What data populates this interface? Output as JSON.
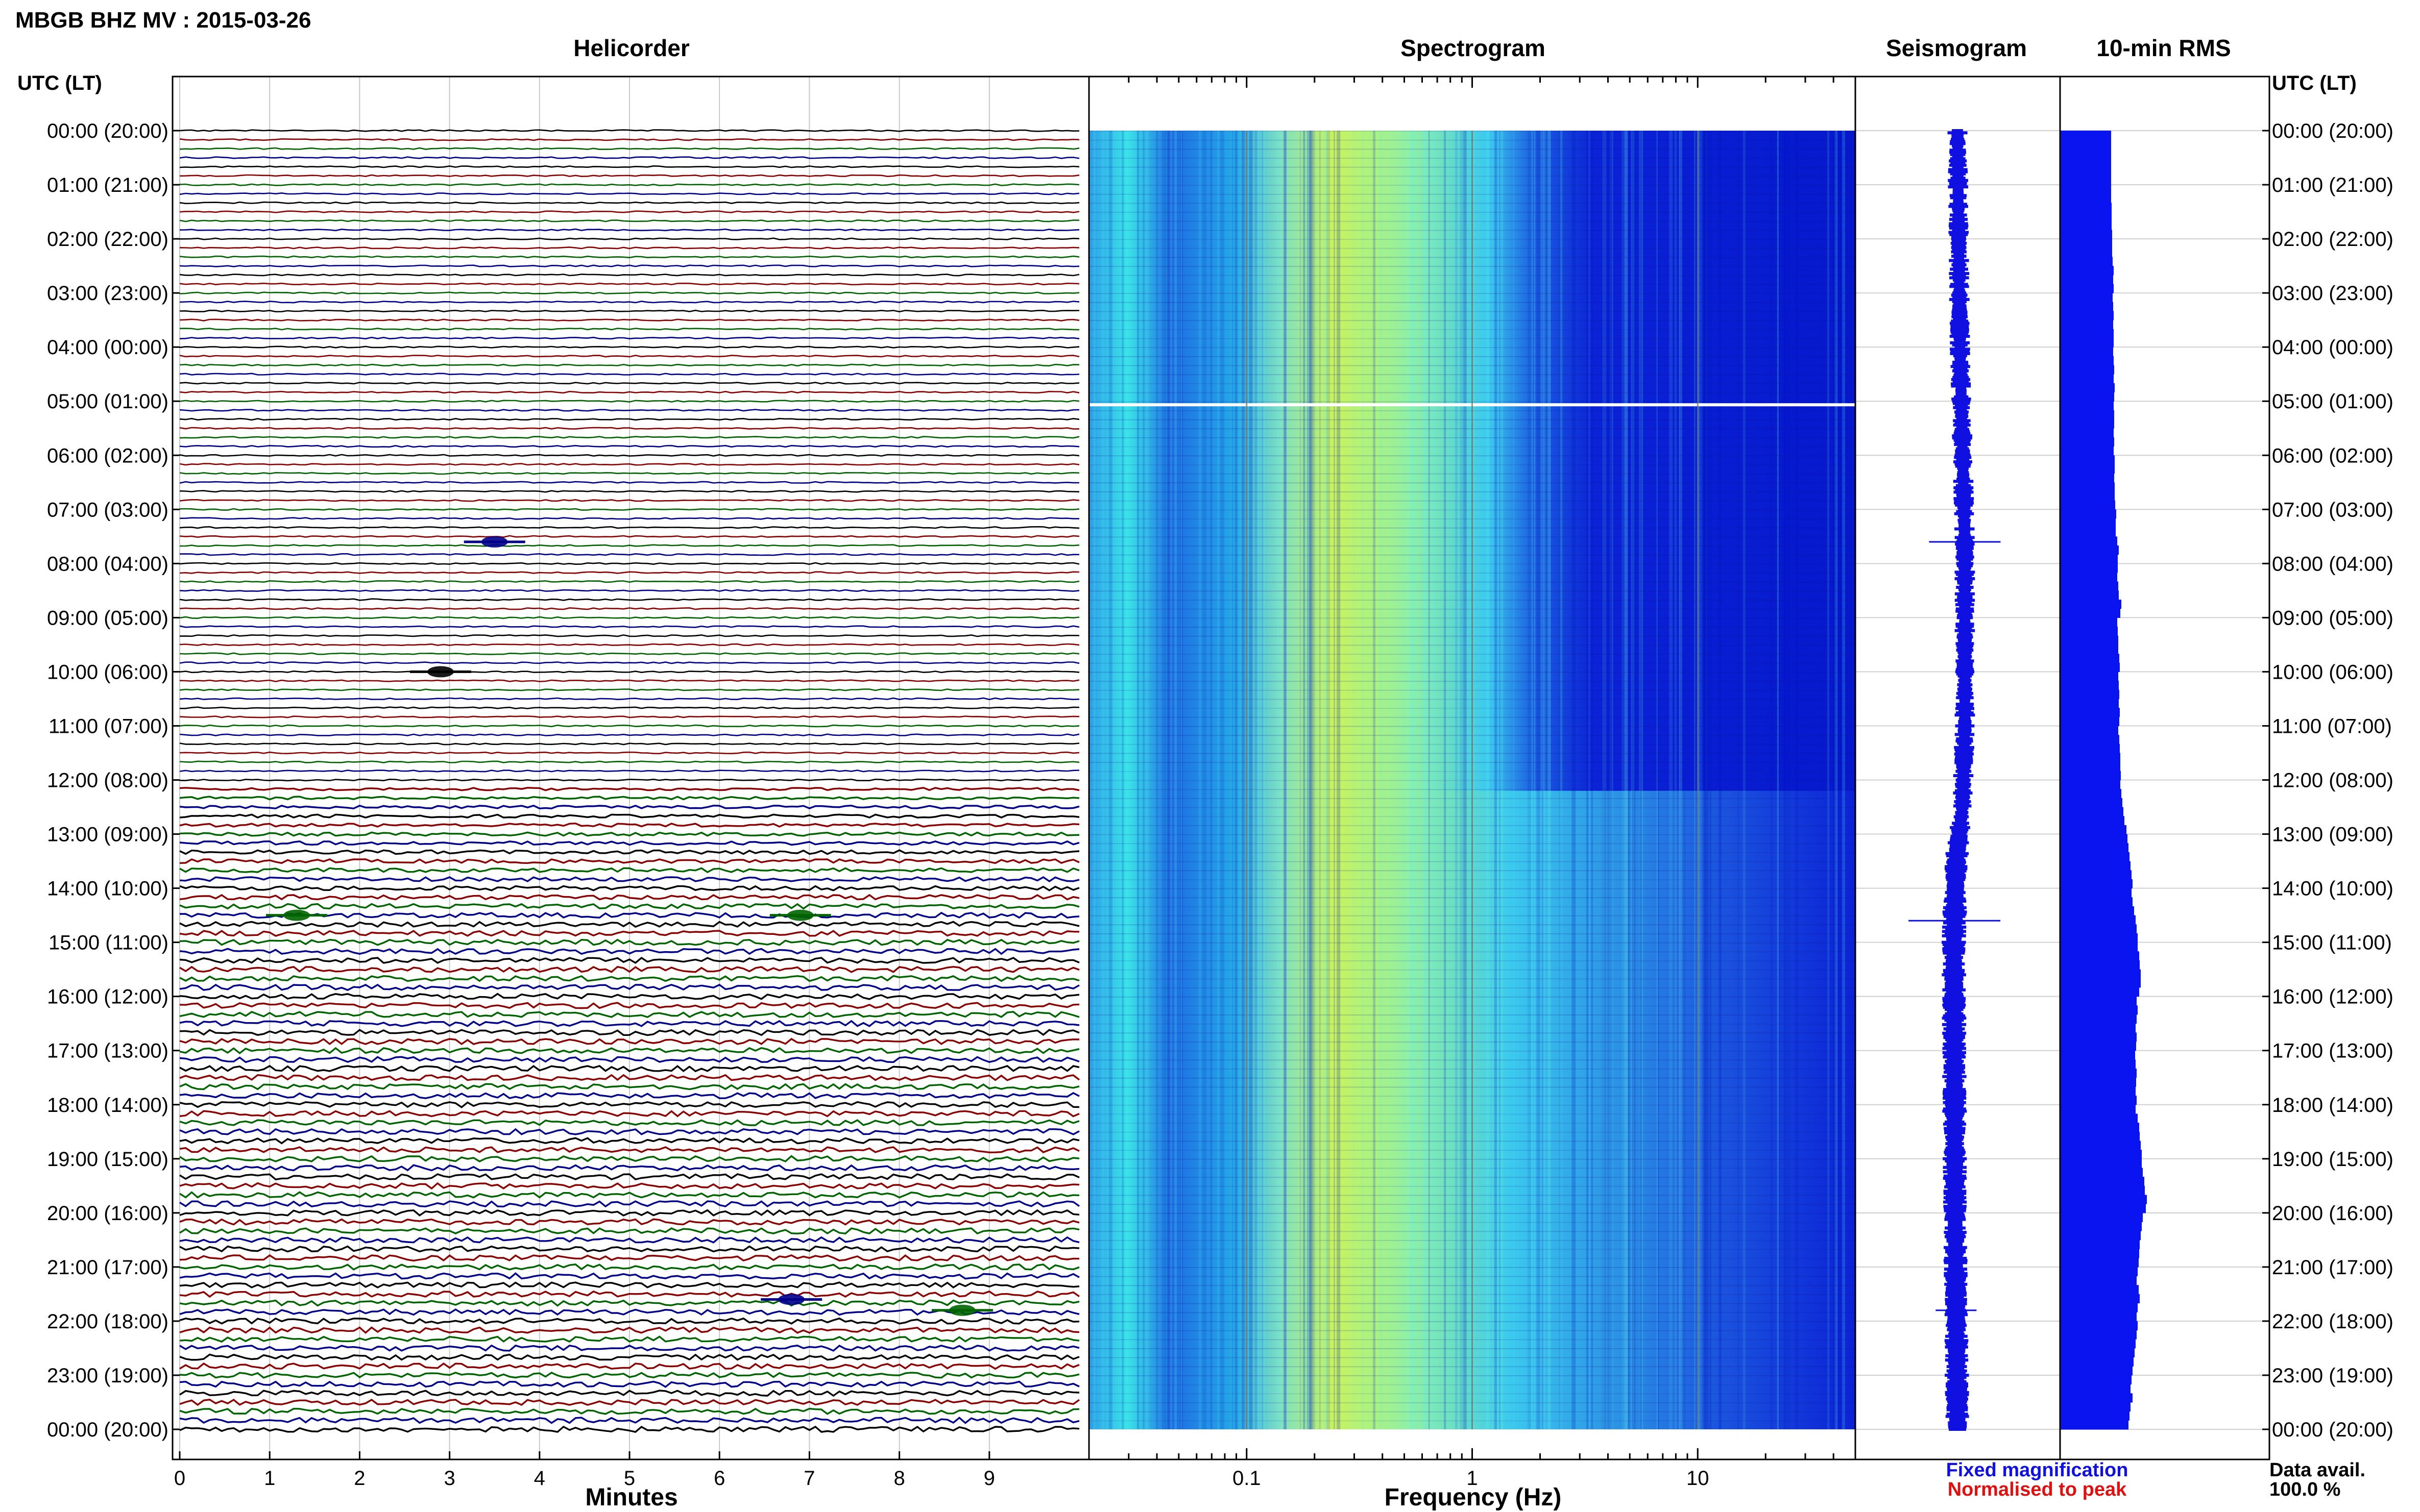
{
  "header": {
    "station_title": "MBGB BHZ MV : 2015-03-26"
  },
  "panels": {
    "helicorder": "Helicorder",
    "spectrogram": "Spectrogram",
    "seismogram": "Seismogram",
    "rms": "10-min RMS"
  },
  "axes": {
    "time_header_left": "UTC (LT)",
    "time_header_right": "UTC (LT)",
    "minutes_label": "Minutes",
    "frequency_label": "Frequency (Hz)"
  },
  "legend": {
    "fixed": "Fixed magnification",
    "normalised": "Normalised to peak",
    "fixed_color": "#1010e0",
    "normalised_color": "#e01010"
  },
  "availability": {
    "label": "Data avail.",
    "value": "100.0 %"
  },
  "colors": {
    "trace_cycle": [
      "#000000",
      "#8b0000",
      "#006400",
      "#00008b"
    ],
    "spectrogram_low": "#0a1fd8",
    "spectrogram_mid": "#29c6e6",
    "spectrogram_high": "#d2f25a",
    "rms_fill": "#0a14f0"
  },
  "chart_data": {
    "type": "helicorder",
    "time_labels": [
      "00:00 (20:00)",
      "01:00 (21:00)",
      "02:00 (22:00)",
      "03:00 (23:00)",
      "04:00 (00:00)",
      "05:00 (01:00)",
      "06:00 (02:00)",
      "07:00 (03:00)",
      "08:00 (04:00)",
      "09:00 (05:00)",
      "10:00 (06:00)",
      "11:00 (07:00)",
      "12:00 (08:00)",
      "13:00 (09:00)",
      "14:00 (10:00)",
      "15:00 (11:00)",
      "16:00 (12:00)",
      "17:00 (13:00)",
      "18:00 (14:00)",
      "19:00 (15:00)",
      "20:00 (16:00)",
      "21:00 (17:00)",
      "22:00 (18:00)",
      "23:00 (19:00)",
      "00:00 (20:00)"
    ],
    "minute_ticks": [
      "0",
      "1",
      "2",
      "3",
      "4",
      "5",
      "6",
      "7",
      "8",
      "9"
    ],
    "minute_range": [
      0,
      10
    ],
    "traces_per_hour": 6,
    "frequency_ticks": [
      {
        "value": 0.1,
        "label": "0.1"
      },
      {
        "value": 1,
        "label": "1"
      },
      {
        "value": 10,
        "label": "10"
      }
    ],
    "frequency_range": [
      0.02,
      50
    ],
    "events": [
      {
        "hour": 7.6,
        "minute": 3.5,
        "color": "#00008b"
      },
      {
        "hour": 10.0,
        "minute": 2.9,
        "color": "#000000"
      },
      {
        "hour": 14.5,
        "minute": 1.3,
        "color": "#006400"
      },
      {
        "hour": 14.5,
        "minute": 6.9,
        "color": "#006400"
      },
      {
        "hour": 21.6,
        "minute": 6.8,
        "color": "#00008b"
      },
      {
        "hour": 21.8,
        "minute": 8.7,
        "color": "#006400"
      }
    ],
    "rms_10min": [
      1.0,
      1.0,
      1.0,
      1.0,
      1.0,
      1.0,
      1.0,
      1.0,
      1.01,
      1.01,
      1.01,
      1.02,
      1.02,
      1.02,
      1.03,
      1.05,
      1.04,
      1.05,
      1.03,
      1.04,
      1.05,
      1.04,
      1.05,
      1.05,
      1.04,
      1.05,
      1.06,
      1.05,
      1.07,
      1.06,
      1.05,
      1.06,
      1.06,
      1.05,
      1.06,
      1.05,
      1.07,
      1.07,
      1.06,
      1.07,
      1.07,
      1.08,
      1.1,
      1.09,
      1.09,
      1.12,
      1.15,
      1.13,
      1.13,
      1.12,
      1.14,
      1.15,
      1.2,
      1.18,
      1.12,
      1.13,
      1.14,
      1.14,
      1.16,
      1.17,
      1.14,
      1.15,
      1.16,
      1.15,
      1.17,
      1.16,
      1.14,
      1.16,
      1.17,
      1.18,
      1.18,
      1.19,
      1.18,
      1.2,
      1.22,
      1.24,
      1.26,
      1.3,
      1.32,
      1.34,
      1.36,
      1.38,
      1.4,
      1.42,
      1.4,
      1.42,
      1.45,
      1.48,
      1.5,
      1.52,
      1.52,
      1.55,
      1.56,
      1.58,
      1.58,
      1.55,
      1.5,
      1.52,
      1.5,
      1.48,
      1.5,
      1.49,
      1.47,
      1.48,
      1.5,
      1.49,
      1.48,
      1.5,
      1.48,
      1.52,
      1.55,
      1.56,
      1.58,
      1.6,
      1.6,
      1.62,
      1.65,
      1.66,
      1.7,
      1.68,
      1.62,
      1.6,
      1.58,
      1.56,
      1.55,
      1.54,
      1.52,
      1.5,
      1.54,
      1.56,
      1.52,
      1.5,
      1.52,
      1.5,
      1.48,
      1.46,
      1.44,
      1.42,
      1.4,
      1.38,
      1.42,
      1.38,
      1.36,
      1.34
    ],
    "seismogram_band": [
      {
        "hour": 0,
        "position": 0.5
      },
      {
        "hour": 4,
        "position": 0.54
      },
      {
        "hour": 7.6,
        "position": 0.62
      },
      {
        "hour": 11,
        "position": 0.62
      },
      {
        "hour": 12.5,
        "position": 0.58
      },
      {
        "hour": 13.5,
        "position": 0.48
      },
      {
        "hour": 15,
        "position": 0.44
      },
      {
        "hour": 20,
        "position": 0.46
      },
      {
        "hour": 24,
        "position": 0.5
      }
    ]
  }
}
